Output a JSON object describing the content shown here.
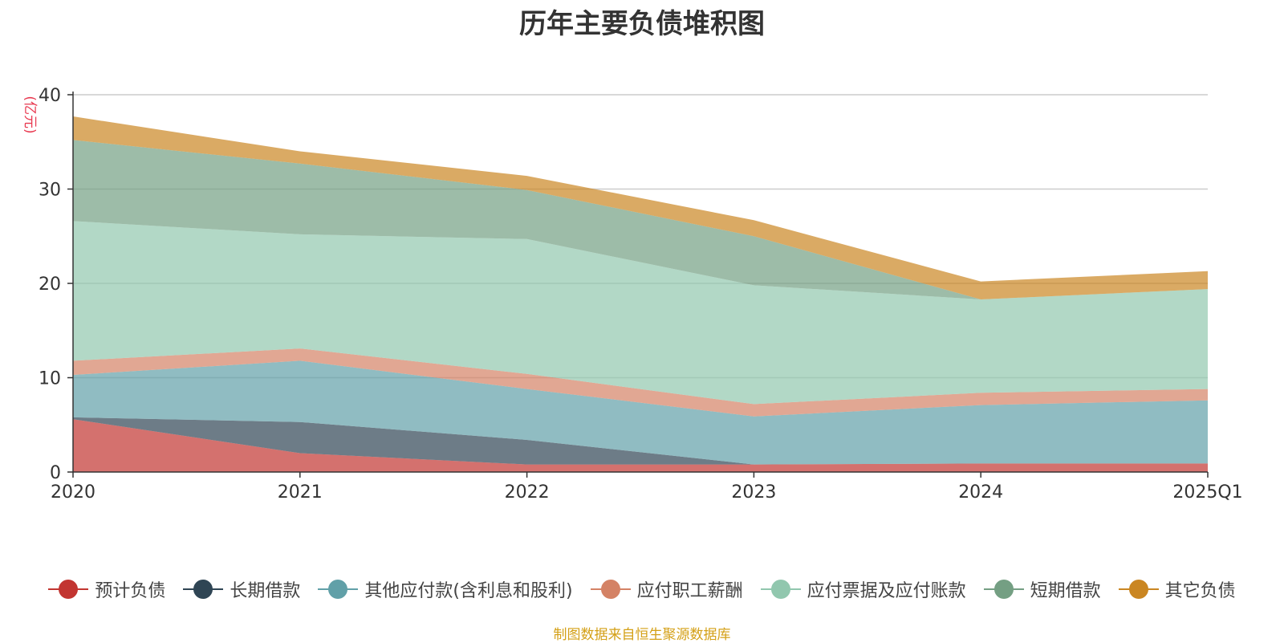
{
  "title": "历年主要负债堆积图",
  "source_note": "制图数据来自恒生聚源数据库",
  "chart_data": {
    "type": "area",
    "stacked": true,
    "title": "历年主要负债堆积图",
    "ylabel": "(亿元)",
    "xlabel": "",
    "categories": [
      "2020",
      "2021",
      "2022",
      "2023",
      "2024",
      "2025Q1"
    ],
    "ylim": [
      0,
      40
    ],
    "yticks": [
      0,
      10,
      20,
      30,
      40
    ],
    "grid": true,
    "legend_position": "bottom",
    "series": [
      {
        "name": "预计负债",
        "color": "#c23531",
        "values": [
          5.6,
          2.0,
          0.8,
          0.8,
          0.9,
          0.9
        ]
      },
      {
        "name": "长期借款",
        "color": "#2f4554",
        "values": [
          0.2,
          3.3,
          2.6,
          0.0,
          0.0,
          0.0
        ]
      },
      {
        "name": "其他应付款(含利息和股利)",
        "color": "#61a0a8",
        "values": [
          4.5,
          6.5,
          5.4,
          5.1,
          6.2,
          6.7
        ]
      },
      {
        "name": "应付职工薪酬",
        "color": "#d48265",
        "values": [
          1.5,
          1.3,
          1.6,
          1.3,
          1.3,
          1.2
        ]
      },
      {
        "name": "应付票据及应付账款",
        "color": "#91c7ae",
        "values": [
          14.8,
          12.1,
          14.3,
          12.6,
          9.9,
          10.6
        ]
      },
      {
        "name": "短期借款",
        "color": "#749f83",
        "values": [
          8.6,
          7.5,
          5.2,
          5.2,
          0.0,
          0.0
        ]
      },
      {
        "name": "其它负债",
        "color": "#ca8622",
        "values": [
          2.5,
          1.3,
          1.5,
          1.7,
          1.9,
          1.9
        ]
      }
    ]
  }
}
